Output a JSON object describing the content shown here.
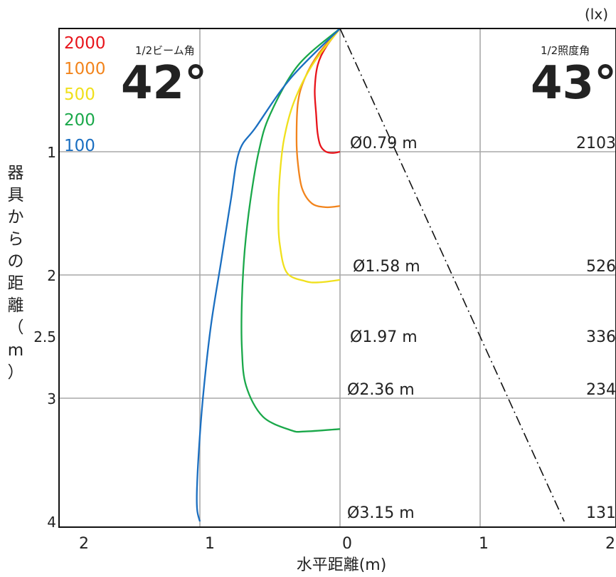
{
  "chart_data": {
    "type": "line",
    "title": "",
    "xlabel": "水平距離(m)",
    "ylabel": "器具からの距離（m）",
    "unit_label": "(lx)",
    "x_ticks_left": [
      "2",
      "1"
    ],
    "x_ticks_right": [
      "0",
      "1",
      "2"
    ],
    "y_ticks": [
      {
        "value": 1,
        "label": "1"
      },
      {
        "value": 2,
        "label": "2"
      },
      {
        "value": 2.5,
        "label": "2.5"
      },
      {
        "value": 3,
        "label": "3"
      },
      {
        "value": 4,
        "label": "4"
      }
    ],
    "xlim": [
      -2.1,
      2
    ],
    "ylim": [
      0,
      4.05
    ],
    "grid": true,
    "half_beam_angle_label": "1/2ビーム角",
    "half_beam_angle_value": "42°",
    "half_illuminance_angle_label": "1/2照度角",
    "half_illuminance_angle_value": "43°",
    "legend_position": "top-left",
    "series": [
      {
        "name": "2000",
        "color": "#e8141b",
        "x": [
          0,
          -0.1,
          -0.16,
          -0.18,
          -0.17,
          -0.16,
          -0.14,
          -0.1,
          -0.05,
          0
        ],
        "y": [
          0,
          0.15,
          0.3,
          0.5,
          0.7,
          0.85,
          0.95,
          1.0,
          1.01,
          1.0
        ]
      },
      {
        "name": "1000",
        "color": "#f2841c",
        "x": [
          0,
          -0.15,
          -0.25,
          -0.3,
          -0.31,
          -0.3,
          -0.27,
          -0.2,
          -0.1,
          0
        ],
        "y": [
          0,
          0.2,
          0.4,
          0.6,
          0.9,
          1.1,
          1.3,
          1.42,
          1.45,
          1.44
        ]
      },
      {
        "name": "500",
        "color": "#f0e01c",
        "x": [
          0,
          -0.2,
          -0.33,
          -0.4,
          -0.43,
          -0.44,
          -0.43,
          -0.38,
          -0.25,
          -0.15,
          0
        ],
        "y": [
          0,
          0.3,
          0.6,
          0.9,
          1.2,
          1.5,
          1.75,
          1.98,
          2.05,
          2.06,
          2.04
        ]
      },
      {
        "name": "200",
        "color": "#1aa84a",
        "x": [
          0,
          -0.3,
          -0.5,
          -0.58,
          -0.64,
          -0.68,
          -0.7,
          -0.7,
          -0.67,
          -0.55,
          -0.35,
          -0.25,
          0
        ],
        "y": [
          0,
          0.3,
          0.7,
          1.0,
          1.4,
          1.8,
          2.2,
          2.6,
          2.9,
          3.15,
          3.26,
          3.27,
          3.25
        ]
      },
      {
        "name": "100",
        "color": "#1b6fc1",
        "x": [
          0,
          -0.35,
          -0.6,
          -0.72,
          -0.78,
          -0.85,
          -0.92,
          -0.97,
          -1.0,
          -1.02,
          -1.02,
          -1.0
        ],
        "y": [
          0,
          0.4,
          0.8,
          1.0,
          1.4,
          1.9,
          2.4,
          2.9,
          3.3,
          3.7,
          3.9,
          4.0
        ]
      }
    ],
    "beam_edge_line": {
      "x": [
        0,
        1.6
      ],
      "y": [
        0,
        4.0
      ],
      "style": "dash-dot",
      "color": "#111111"
    },
    "annotations": [
      {
        "y": 1,
        "diameter": "Ø0.79 m",
        "lux": "2103"
      },
      {
        "y": 2,
        "diameter": "Ø1.58 m",
        "lux": "526"
      },
      {
        "y": 2.5,
        "diameter": "Ø1.97 m",
        "lux": "336"
      },
      {
        "y": 3,
        "diameter": "Ø2.36 m",
        "lux": "234"
      },
      {
        "y": 4,
        "diameter": "Ø3.15 m",
        "lux": "131"
      }
    ]
  }
}
